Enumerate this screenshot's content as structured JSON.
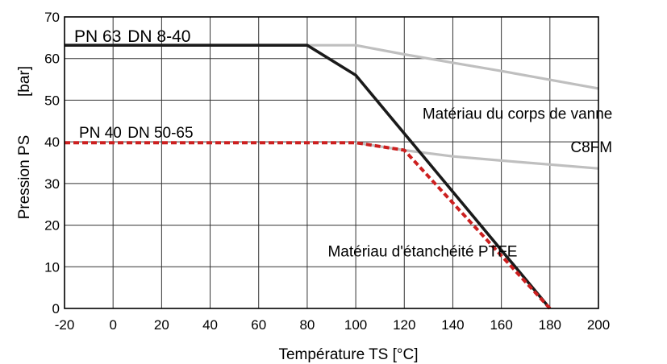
{
  "chart_data": {
    "type": "line",
    "xlabel": "Température TS [°C]",
    "ylabel": "Pression PS",
    "ylabel_unit": "[bar]",
    "xlim": [
      -20,
      200
    ],
    "ylim": [
      0,
      70
    ],
    "xticks": [
      -20,
      0,
      20,
      40,
      60,
      80,
      100,
      120,
      140,
      160,
      180,
      200
    ],
    "yticks": [
      0,
      10,
      20,
      30,
      40,
      50,
      60,
      70
    ],
    "grid": true,
    "series": [
      {
        "name": "PN 63 DN 8-40",
        "color": "#bfbfbf",
        "style": "solid",
        "points": [
          [
            80,
            63.2
          ],
          [
            100,
            63.2
          ],
          [
            120,
            61.0
          ],
          [
            140,
            59.0
          ],
          [
            160,
            57.0
          ],
          [
            200,
            52.8
          ]
        ]
      },
      {
        "name": "PN 40 DN 50-65",
        "color": "#bfbfbf",
        "style": "solid",
        "points": [
          [
            100,
            39.8
          ],
          [
            120,
            38.0
          ],
          [
            140,
            36.5
          ],
          [
            160,
            35.5
          ],
          [
            200,
            33.6
          ]
        ]
      },
      {
        "name": "PN 63 DN 8-40",
        "color": "#1a1a1a",
        "style": "solid",
        "points": [
          [
            -20,
            63.2
          ],
          [
            80,
            63.2
          ],
          [
            100,
            56.0
          ],
          [
            120,
            42.0
          ],
          [
            180,
            0
          ]
        ]
      },
      {
        "name": "PN 40 DN 50-65",
        "color": "#cc1f1f",
        "style": "dashed",
        "points": [
          [
            -20,
            39.8
          ],
          [
            100,
            39.8
          ],
          [
            120,
            38.0
          ],
          [
            180,
            0
          ]
        ]
      }
    ],
    "annotations": [
      {
        "key": "pn63",
        "text": "PN 63",
        "x": -16,
        "y": 64
      },
      {
        "key": "dn840",
        "text": "DN 8-40",
        "x": 6,
        "y": 64
      },
      {
        "key": "pn40",
        "text": "PN 40",
        "x": -14,
        "y": 41
      },
      {
        "key": "dn5065",
        "text": "DN 50-65",
        "x": 6,
        "y": 41
      },
      {
        "key": "body_material",
        "text": "Matériau du corps de vanne",
        "x": 127.5,
        "y": 45.5
      },
      {
        "key": "c8fm",
        "text": "C8FM",
        "x": 188.5,
        "y": 37.5
      },
      {
        "key": "seal_material",
        "text": "Matériau d'étanchéité PTFE",
        "x": 88.5,
        "y": 12.5
      }
    ]
  }
}
